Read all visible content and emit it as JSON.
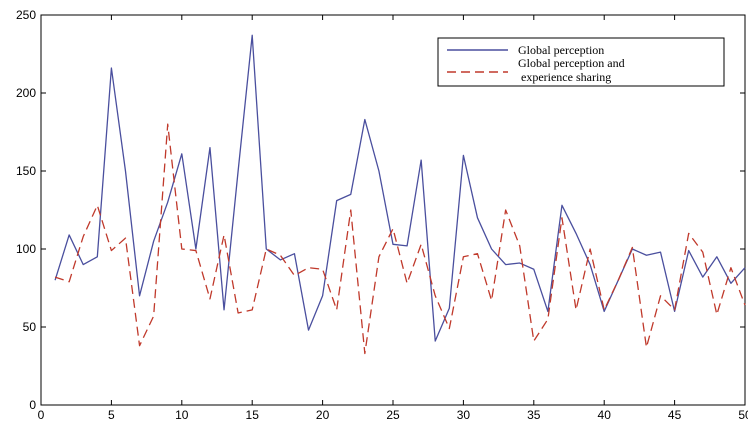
{
  "chart_data": {
    "type": "line",
    "title": "",
    "xlabel": "",
    "ylabel": "",
    "xlim": [
      0,
      50
    ],
    "ylim": [
      0,
      250
    ],
    "xticks": [
      0,
      5,
      10,
      15,
      20,
      25,
      30,
      35,
      40,
      45,
      50
    ],
    "yticks": [
      0,
      50,
      100,
      150,
      200,
      250
    ],
    "grid": false,
    "legend_position": "top-right",
    "x": [
      1,
      2,
      3,
      4,
      5,
      6,
      7,
      8,
      9,
      10,
      11,
      12,
      13,
      14,
      15,
      16,
      17,
      18,
      19,
      20,
      21,
      22,
      23,
      24,
      25,
      26,
      27,
      28,
      29,
      30,
      31,
      32,
      33,
      34,
      35,
      36,
      37,
      38,
      39,
      40,
      41,
      42,
      43,
      44,
      45,
      46,
      47,
      48,
      49,
      50
    ],
    "series": [
      {
        "name": "Global perception",
        "color": "#4a4f9e",
        "style": "solid",
        "values": [
          80,
          109,
          90,
          95,
          216,
          150,
          70,
          105,
          130,
          161,
          100,
          165,
          61,
          150,
          237,
          100,
          93,
          97,
          48,
          70,
          131,
          135,
          183,
          150,
          103,
          102,
          157,
          41,
          62,
          160,
          120,
          100,
          90,
          91,
          87,
          60,
          128,
          110,
          90,
          60,
          80,
          100,
          96,
          98,
          60,
          99,
          82,
          95,
          78,
          88
        ]
      },
      {
        "name": "Global perception and experience sharing",
        "color": "#c0392b",
        "style": "dashed",
        "values": [
          82,
          79,
          108,
          128,
          99,
          107,
          38,
          57,
          180,
          100,
          99,
          68,
          109,
          59,
          61,
          100,
          96,
          83,
          88,
          87,
          61,
          125,
          33,
          95,
          113,
          78,
          103,
          70,
          49,
          95,
          97,
          67,
          125,
          102,
          41,
          55,
          120,
          61,
          100,
          61,
          80,
          101,
          37,
          70,
          61,
          110,
          98,
          58,
          88,
          64
        ]
      }
    ]
  },
  "legend": {
    "item1": "Global perception",
    "item2_line1": "Global perception and",
    "item2_line2": "experience sharing"
  }
}
